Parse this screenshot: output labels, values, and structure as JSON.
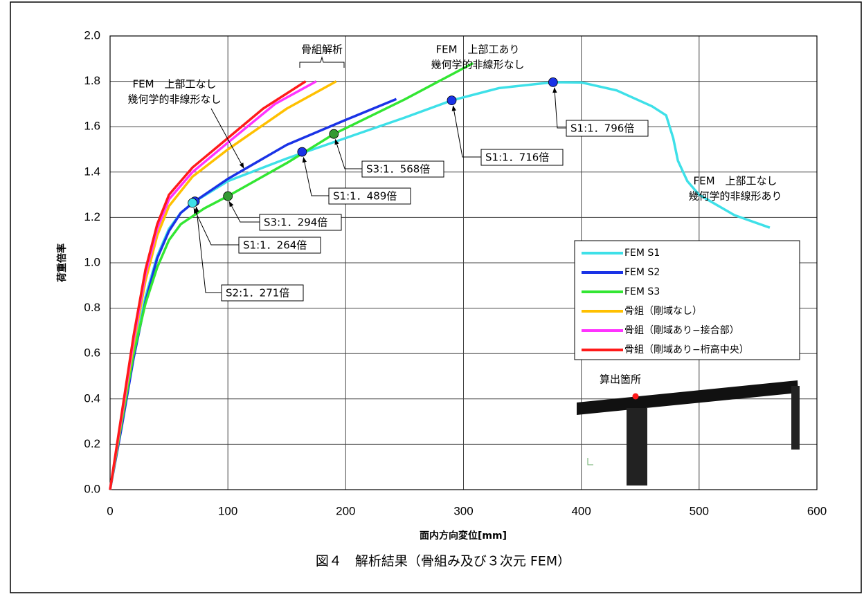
{
  "chart_data": {
    "type": "line",
    "caption": "図４　解析結果（骨組み及び３次元 FEM）",
    "x_label": "面内方向変位[mm]",
    "y_label": "荷重倍率",
    "xlim": [
      0,
      600
    ],
    "xticks": [
      0,
      100,
      200,
      300,
      400,
      500,
      600
    ],
    "ylim": [
      0,
      2
    ],
    "yticks": [
      {
        "value": 0,
        "label": "0.0"
      },
      0.2,
      0.4,
      0.6,
      0.8,
      {
        "value": 1,
        "label": "1.0"
      },
      1.2,
      1.4,
      1.6,
      1.8,
      {
        "value": 2,
        "label": "2.0"
      }
    ],
    "grid": true,
    "legend": "right",
    "series": [
      {
        "name": "FEM S1",
        "color": "#3ee0e8",
        "x": [
          0,
          10,
          20,
          30,
          40,
          50,
          60,
          70,
          100,
          150,
          200,
          250,
          290,
          330,
          376,
          400,
          430,
          460,
          472,
          478,
          482,
          490,
          500,
          530,
          560
        ],
        "values": [
          0,
          0.3,
          0.6,
          0.85,
          1.03,
          1.15,
          1.22,
          1.264,
          1.36,
          1.46,
          1.55,
          1.64,
          1.716,
          1.77,
          1.796,
          1.795,
          1.76,
          1.69,
          1.65,
          1.55,
          1.45,
          1.36,
          1.3,
          1.21,
          1.155
        ]
      },
      {
        "name": "FEM S2",
        "color": "#1a33e6",
        "x": [
          0,
          10,
          20,
          30,
          40,
          50,
          60,
          72,
          100,
          150,
          200,
          243
        ],
        "values": [
          0,
          0.28,
          0.58,
          0.83,
          1.02,
          1.14,
          1.22,
          1.271,
          1.37,
          1.52,
          1.63,
          1.722
        ]
      },
      {
        "name": "FEM S3",
        "color": "#33e633",
        "x": [
          0,
          10,
          20,
          30,
          40,
          50,
          60,
          80,
          100,
          150,
          190,
          250,
          308
        ],
        "values": [
          0,
          0.3,
          0.6,
          0.82,
          0.98,
          1.1,
          1.17,
          1.24,
          1.294,
          1.44,
          1.568,
          1.72,
          1.88
        ]
      },
      {
        "name": "骨組（剛域なし）",
        "color": "#ffc000",
        "x": [
          0,
          10,
          20,
          30,
          40,
          50,
          70,
          100,
          150,
          192
        ],
        "values": [
          0,
          0.32,
          0.64,
          0.92,
          1.12,
          1.25,
          1.38,
          1.5,
          1.68,
          1.8
        ]
      },
      {
        "name": "骨組（剛域あり−接合部）",
        "color": "#ff33ff",
        "x": [
          0,
          10,
          20,
          30,
          40,
          50,
          70,
          100,
          140,
          175
        ],
        "values": [
          0,
          0.33,
          0.66,
          0.95,
          1.15,
          1.28,
          1.4,
          1.53,
          1.7,
          1.8
        ]
      },
      {
        "name": "骨組（剛域あり−桁高中央）",
        "color": "#ff1a1a",
        "x": [
          0,
          10,
          20,
          30,
          40,
          50,
          70,
          100,
          130,
          166
        ],
        "values": [
          0,
          0.34,
          0.68,
          0.97,
          1.17,
          1.3,
          1.42,
          1.55,
          1.68,
          1.8
        ]
      }
    ],
    "annotations": [
      {
        "label": "S2:1．271倍",
        "x": 72,
        "y": 1.271,
        "color": "#1a33e6"
      },
      {
        "label": "S1:1．264倍",
        "x": 70,
        "y": 1.264,
        "color": "#3ee0e8"
      },
      {
        "label": "S3:1．294倍",
        "x": 100,
        "y": 1.294,
        "color": "#339933"
      },
      {
        "label": "S1:1．489倍",
        "x": 163,
        "y": 1.489,
        "color": "#1a33e6"
      },
      {
        "label": "S3:1．568倍",
        "x": 190,
        "y": 1.568,
        "color": "#339933"
      },
      {
        "label": "S1:1．716倍",
        "x": 290,
        "y": 1.716,
        "color": "#1a33e6"
      },
      {
        "label": "S1:1．796倍",
        "x": 376,
        "y": 1.796,
        "color": "#1a33e6"
      }
    ],
    "notes": [
      {
        "lines": [
          "FEM　上部工なし",
          "幾何学的非線形なし"
        ]
      },
      {
        "lines": [
          "骨組解析"
        ]
      },
      {
        "lines": [
          "FEM　上部工あり",
          "幾何学的非線形なし"
        ]
      },
      {
        "lines": [
          "FEM　上部工なし",
          "幾何学的非線形あり"
        ]
      }
    ],
    "inset_label": "算出箇所"
  }
}
